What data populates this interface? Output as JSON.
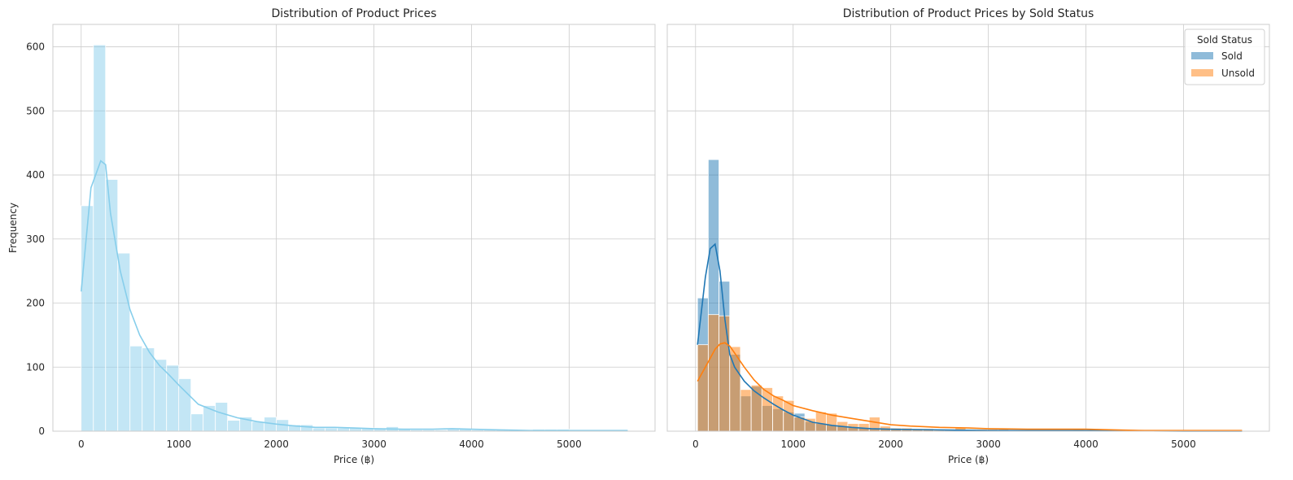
{
  "chart_data": [
    {
      "type": "histogram",
      "title": "Distribution of Product Prices",
      "xlabel": "Price (฿)",
      "ylabel": "Frequency",
      "xlim": [
        -290,
        5880
      ],
      "ylim": [
        0,
        635
      ],
      "xticks": [
        0,
        1000,
        2000,
        3000,
        4000,
        5000
      ],
      "yticks": [
        0,
        100,
        200,
        300,
        400,
        500,
        600
      ],
      "grid": true,
      "bin_start": 0,
      "bin_width": 125,
      "series": [
        {
          "color": "#87ceeb",
          "counts": [
            352,
            603,
            393,
            278,
            133,
            130,
            112,
            103,
            82,
            27,
            40,
            45,
            17,
            22,
            15,
            22,
            18,
            10,
            10,
            5,
            5,
            5,
            5,
            5,
            5,
            7,
            3,
            2,
            2,
            2,
            3,
            3,
            2,
            2,
            2,
            2,
            2,
            3,
            3,
            3,
            2,
            1,
            1,
            1,
            1
          ],
          "kde_x": [
            0,
            100,
            200,
            250,
            300,
            400,
            500,
            600,
            700,
            800,
            900,
            1000,
            1200,
            1400,
            1600,
            1800,
            2000,
            2200,
            2400,
            2600,
            2800,
            3000,
            3300,
            3600,
            3800,
            4000,
            4300,
            4600,
            5000,
            5300,
            5600
          ],
          "kde_y": [
            218,
            380,
            422,
            416,
            340,
            250,
            190,
            150,
            123,
            103,
            88,
            72,
            42,
            30,
            21,
            15,
            11,
            8,
            6,
            6,
            5,
            4,
            3,
            3,
            4,
            3,
            2,
            1,
            1,
            1,
            1
          ]
        }
      ]
    },
    {
      "type": "histogram",
      "title": "Distribution of Product Prices by Sold Status",
      "xlabel": "Price (฿)",
      "ylabel": "",
      "xlim": [
        -290,
        5880
      ],
      "ylim": [
        0,
        635
      ],
      "xticks": [
        0,
        1000,
        2000,
        3000,
        4000,
        5000
      ],
      "yticks": [
        0,
        100,
        200,
        300,
        400,
        500,
        600
      ],
      "grid": true,
      "legend": {
        "title": "Sold Status",
        "placement": "top-right"
      },
      "bin_start": 20,
      "bin_width": 110,
      "series": [
        {
          "name": "Sold",
          "color": "#1f77b4",
          "counts": [
            208,
            424,
            234,
            120,
            55,
            70,
            40,
            35,
            30,
            28,
            15,
            12,
            10,
            8,
            6,
            5,
            5,
            4,
            3,
            2,
            2,
            2,
            1,
            1,
            1,
            1,
            1,
            1,
            1,
            1,
            1,
            1,
            1,
            1,
            1,
            1,
            1,
            0,
            0,
            0,
            0,
            0,
            0,
            0,
            0,
            0,
            0,
            0,
            0,
            0
          ],
          "kde_x": [
            20,
            100,
            150,
            200,
            250,
            300,
            350,
            400,
            500,
            600,
            700,
            800,
            900,
            1000,
            1200,
            1400,
            1600,
            1800,
            2000,
            2500,
            3000,
            4000,
            5000,
            5600
          ],
          "kde_y": [
            135,
            240,
            285,
            292,
            250,
            175,
            120,
            100,
            78,
            63,
            52,
            42,
            33,
            25,
            14,
            9,
            6,
            4,
            3,
            2,
            1,
            1,
            0,
            0
          ]
        },
        {
          "name": "Unsold",
          "color": "#ff7f0e",
          "counts": [
            135,
            182,
            180,
            132,
            65,
            72,
            68,
            55,
            48,
            22,
            20,
            30,
            28,
            15,
            12,
            12,
            22,
            8,
            5,
            5,
            4,
            4,
            3,
            3,
            6,
            3,
            3,
            3,
            3,
            2,
            2,
            2,
            2,
            2,
            2,
            3,
            2,
            2,
            1,
            1,
            1,
            1,
            1,
            1,
            1,
            1,
            1,
            1,
            1,
            1
          ],
          "kde_x": [
            20,
            100,
            200,
            250,
            300,
            350,
            400,
            500,
            600,
            700,
            800,
            900,
            1000,
            1200,
            1400,
            1600,
            1800,
            2000,
            2200,
            2500,
            2800,
            3000,
            3400,
            3800,
            4000,
            4300,
            4600,
            5000,
            5300,
            5600
          ],
          "kde_y": [
            78,
            100,
            128,
            136,
            138,
            133,
            122,
            100,
            80,
            65,
            55,
            48,
            40,
            32,
            25,
            20,
            15,
            10,
            8,
            6,
            5,
            4,
            3,
            3,
            3,
            2,
            1,
            1,
            1,
            1
          ]
        }
      ]
    }
  ]
}
